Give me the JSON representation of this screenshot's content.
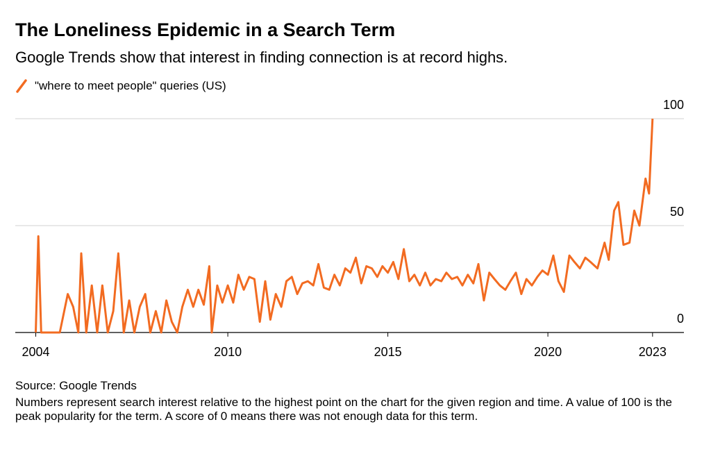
{
  "chart_data": {
    "type": "line",
    "title": "The Loneliness Epidemic in a Search Term",
    "subtitle": "Google Trends show that interest in finding connection is at record highs.",
    "source": "Source: Google Trends",
    "note": "Numbers represent search interest relative to the highest point on the chart for the given region and time. A value of 100 is the peak popularity for the term. A score of 0 means there was not enough data for this term.",
    "xlim": [
      2003.36,
      2024.25
    ],
    "xticks": [
      2004,
      2010,
      2015,
      2020,
      {
        "value": 2023.27,
        "label": "2023"
      }
    ],
    "ylim": [
      0,
      100
    ],
    "yticks": [
      0,
      50,
      100
    ],
    "grid": true,
    "series": [
      {
        "name": "\"where to meet people\" queries (US)",
        "color": "#f26b21",
        "x": [
          2004.0,
          2004.08,
          2004.17,
          2004.5,
          2004.75,
          2005.0,
          2005.17,
          2005.33,
          2005.42,
          2005.58,
          2005.75,
          2005.92,
          2006.08,
          2006.25,
          2006.42,
          2006.58,
          2006.75,
          2006.92,
          2007.08,
          2007.25,
          2007.42,
          2007.58,
          2007.75,
          2007.92,
          2008.08,
          2008.25,
          2008.42,
          2008.58,
          2008.75,
          2008.92,
          2009.08,
          2009.25,
          2009.42,
          2009.5,
          2009.67,
          2009.83,
          2010.0,
          2010.17,
          2010.33,
          2010.5,
          2010.67,
          2010.83,
          2011.0,
          2011.17,
          2011.33,
          2011.5,
          2011.67,
          2011.83,
          2012.0,
          2012.17,
          2012.33,
          2012.5,
          2012.67,
          2012.83,
          2013.0,
          2013.17,
          2013.33,
          2013.5,
          2013.67,
          2013.83,
          2014.0,
          2014.17,
          2014.33,
          2014.5,
          2014.67,
          2014.83,
          2015.0,
          2015.17,
          2015.33,
          2015.5,
          2015.67,
          2015.83,
          2016.0,
          2016.17,
          2016.33,
          2016.5,
          2016.67,
          2016.83,
          2017.0,
          2017.17,
          2017.33,
          2017.5,
          2017.67,
          2017.83,
          2018.0,
          2018.17,
          2018.33,
          2018.5,
          2018.67,
          2018.83,
          2019.0,
          2019.17,
          2019.33,
          2019.5,
          2019.67,
          2019.83,
          2020.0,
          2020.17,
          2020.33,
          2020.5,
          2020.67,
          2020.83,
          2021.0,
          2021.17,
          2021.33,
          2021.55,
          2021.77,
          2021.9,
          2022.07,
          2022.2,
          2022.36,
          2022.55,
          2022.7,
          2022.86,
          2023.05,
          2023.16,
          2023.27
        ],
        "values": [
          0,
          45,
          0,
          0,
          0,
          18,
          12,
          0,
          37,
          0,
          22,
          0,
          22,
          0,
          10,
          37,
          0,
          15,
          0,
          12,
          18,
          0,
          10,
          0,
          15,
          5,
          0,
          12,
          20,
          12,
          20,
          13,
          31,
          0,
          22,
          14,
          22,
          14,
          27,
          20,
          26,
          25,
          5,
          24,
          6,
          18,
          12,
          24,
          26,
          18,
          23,
          24,
          22,
          32,
          21,
          20,
          27,
          22,
          30,
          28,
          35,
          23,
          31,
          30,
          26,
          31,
          28,
          33,
          25,
          39,
          24,
          27,
          22,
          28,
          22,
          25,
          24,
          28,
          25,
          26,
          22,
          27,
          23,
          32,
          15,
          28,
          25,
          22,
          20,
          24,
          28,
          18,
          25,
          22,
          26,
          29,
          27,
          36,
          24,
          19,
          36,
          33,
          30,
          35,
          33,
          30,
          42,
          34,
          57,
          61,
          41,
          42,
          57,
          50,
          72,
          65,
          100
        ]
      }
    ]
  }
}
